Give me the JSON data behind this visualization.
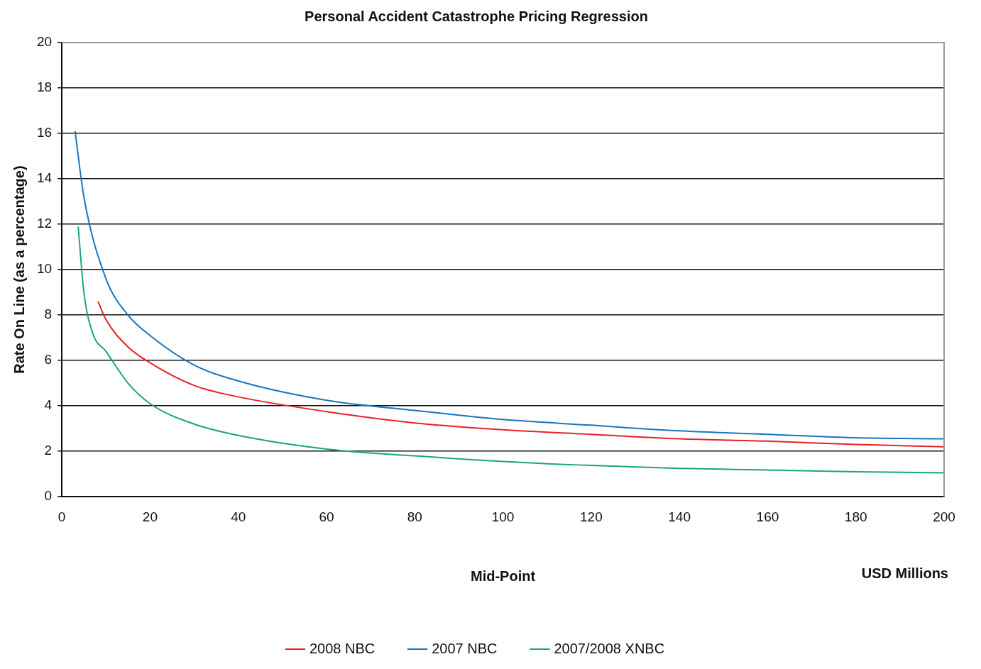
{
  "chart_data": {
    "type": "line",
    "title": "Personal Accident Catastrophe Pricing Regression",
    "xlabel": "Mid-Point",
    "ylabel": "Rate On Line (as a percentage)",
    "annotations": [
      "USD Millions"
    ],
    "xlim": [
      0,
      200
    ],
    "xticks": [
      0,
      20,
      40,
      60,
      80,
      100,
      120,
      140,
      160,
      180,
      200
    ],
    "ylim": [
      0,
      20
    ],
    "yticks": [
      0,
      2,
      4,
      6,
      8,
      10,
      12,
      14,
      16,
      18,
      20
    ],
    "grid": "y",
    "legend": "bottom",
    "line_style": "solid",
    "series": [
      {
        "name": "2008 NBC",
        "color": "#e8202a",
        "x": [
          8.2,
          10,
          15,
          20,
          30,
          40,
          60,
          80,
          100,
          120,
          140,
          160,
          180,
          200
        ],
        "values": [
          8.6,
          7.8,
          6.6,
          5.9,
          4.9,
          4.4,
          3.75,
          3.25,
          2.95,
          2.75,
          2.55,
          2.45,
          2.3,
          2.2
        ]
      },
      {
        "name": "2007 NBC",
        "color": "#1a75bc",
        "x": [
          3,
          5,
          10,
          15,
          20,
          30,
          40,
          60,
          80,
          100,
          120,
          140,
          160,
          180,
          200
        ],
        "values": [
          16.1,
          13.2,
          9.6,
          8,
          7.1,
          5.8,
          5.1,
          4.25,
          3.8,
          3.4,
          3.15,
          2.9,
          2.75,
          2.6,
          2.55
        ]
      },
      {
        "name": "2007/2008 XNBC",
        "color": "#1aa57a",
        "x": [
          3.7,
          5,
          7,
          10,
          15,
          20,
          30,
          40,
          60,
          80,
          100,
          120,
          140,
          160,
          180,
          200
        ],
        "values": [
          11.9,
          9,
          7.2,
          6.4,
          5,
          4.1,
          3.2,
          2.7,
          2.1,
          1.8,
          1.55,
          1.38,
          1.25,
          1.18,
          1.1,
          1.05
        ]
      }
    ]
  }
}
